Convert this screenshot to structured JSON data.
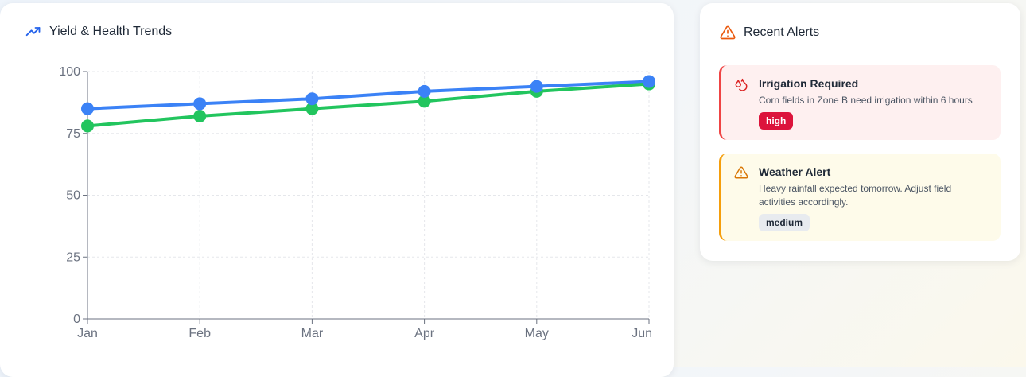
{
  "chart_panel": {
    "title": "Yield & Health Trends",
    "icon": "trending-up-icon"
  },
  "chart_data": {
    "type": "line",
    "categories": [
      "Jan",
      "Feb",
      "Mar",
      "Apr",
      "May",
      "Jun"
    ],
    "series": [
      {
        "values": [
          85,
          87,
          89,
          92,
          94,
          96
        ],
        "color": "#3b82f6"
      },
      {
        "values": [
          78,
          82,
          85,
          88,
          92,
          95
        ],
        "color": "#22c55e"
      }
    ],
    "ylim": [
      0,
      100
    ],
    "yticks": [
      0,
      25,
      50,
      75,
      100
    ],
    "grid": true
  },
  "alerts_panel": {
    "title": "Recent Alerts",
    "icon": "warning-icon",
    "alerts": [
      {
        "title": "Irrigation Required",
        "message": "Corn fields in Zone B need irrigation within 6 hours",
        "severity": "high",
        "icon": "droplets-icon",
        "accent": "#ef4444"
      },
      {
        "title": "Weather Alert",
        "message": "Heavy rainfall expected tomorrow. Adjust field activities accordingly.",
        "severity": "medium",
        "icon": "warning-icon",
        "accent": "#f59e0b"
      }
    ]
  }
}
